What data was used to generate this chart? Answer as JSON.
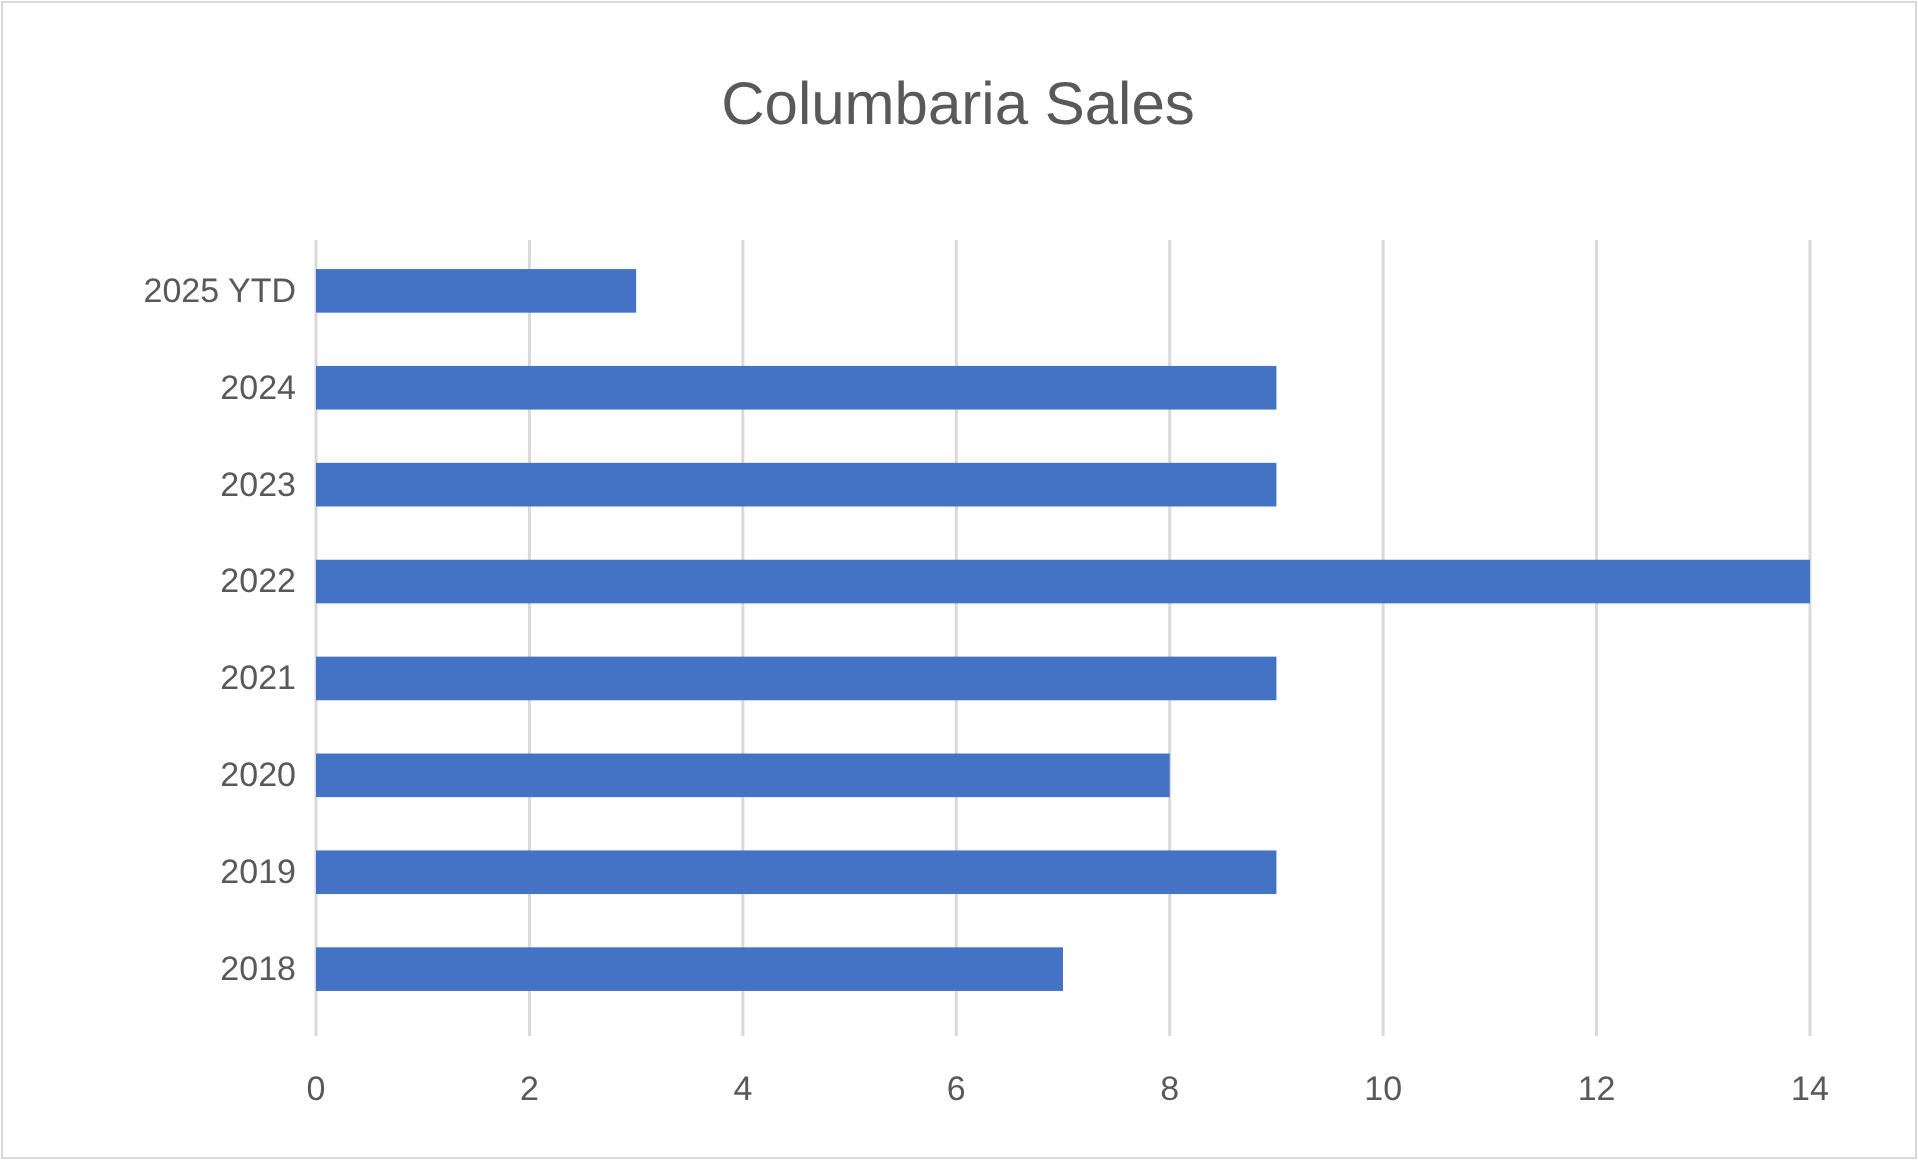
{
  "chart_data": {
    "type": "bar",
    "orientation": "horizontal",
    "title": "Columbaria Sales",
    "categories": [
      "2025 YTD",
      "2024",
      "2023",
      "2022",
      "2021",
      "2020",
      "2019",
      "2018"
    ],
    "values": [
      3,
      9,
      9,
      14,
      9,
      8,
      9,
      7
    ],
    "color": "#4472c4",
    "xlim": [
      0,
      14
    ],
    "xticks": [
      0,
      2,
      4,
      6,
      8,
      10,
      12,
      14
    ],
    "grid": "x"
  }
}
